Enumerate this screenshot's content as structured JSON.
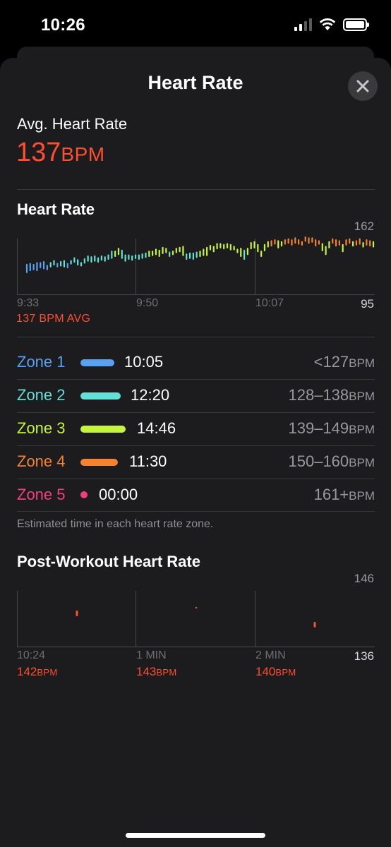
{
  "status_bar": {
    "time": "10:26"
  },
  "sheet": {
    "title": "Heart Rate"
  },
  "summary": {
    "label": "Avg. Heart Rate",
    "value": "137",
    "unit": "BPM"
  },
  "heart_rate_section": {
    "title": "Heart Rate",
    "avg_note": "137 BPM AVG"
  },
  "zones": [
    {
      "name": "Zone 1",
      "time": "10:05",
      "range": "<127",
      "unit": "BPM",
      "color": "#5aa0f0",
      "bar": 0.75
    },
    {
      "name": "Zone 2",
      "time": "12:20",
      "range": "128–138",
      "unit": "BPM",
      "color": "#64e0d6",
      "bar": 0.9
    },
    {
      "name": "Zone 3",
      "time": "14:46",
      "range": "139–149",
      "unit": "BPM",
      "color": "#c6f53d",
      "bar": 1.0
    },
    {
      "name": "Zone 4",
      "time": "11:30",
      "range": "150–160",
      "unit": "BPM",
      "color": "#f5822f",
      "bar": 0.77
    },
    {
      "name": "Zone 5",
      "time": "00:00",
      "range": "161+",
      "unit": "BPM",
      "color": "#f0407a",
      "bar": 0
    }
  ],
  "zones_footnote": "Estimated time in each heart rate zone.",
  "post_workout": {
    "title": "Post-Workout Heart Rate",
    "readings": [
      {
        "label": "10:24",
        "value": "142",
        "unit": "BPM"
      },
      {
        "label": "1 MIN",
        "value": "143",
        "unit": "BPM"
      },
      {
        "label": "2 MIN",
        "value": "140",
        "unit": "BPM"
      }
    ]
  },
  "chart_data": [
    {
      "type": "bar",
      "title": "Heart Rate",
      "x_ticks": [
        "9:33",
        "9:50",
        "10:07"
      ],
      "ylim": [
        95,
        162
      ],
      "y_tick_labels": [
        "162",
        "95"
      ],
      "avg_line_label": "137 BPM AVG",
      "note": "per-interval min/max heart rate ranges, colored by zone",
      "ranges": [
        [
          119,
          127
        ],
        [
          121,
          128
        ],
        [
          122,
          127
        ],
        [
          121,
          129
        ],
        [
          124,
          129
        ],
        [
          123,
          130
        ],
        [
          122,
          126
        ],
        [
          125,
          129
        ],
        [
          127,
          131
        ],
        [
          125,
          128
        ],
        [
          126,
          130
        ],
        [
          125,
          131
        ],
        [
          124,
          128
        ],
        [
          128,
          131
        ],
        [
          130,
          134
        ],
        [
          127,
          132
        ],
        [
          126,
          129
        ],
        [
          129,
          133
        ],
        [
          131,
          136
        ],
        [
          130,
          135
        ],
        [
          131,
          136
        ],
        [
          130,
          134
        ],
        [
          132,
          136
        ],
        [
          131,
          135
        ],
        [
          133,
          137
        ],
        [
          134,
          141
        ],
        [
          136,
          141
        ],
        [
          138,
          144
        ],
        [
          134,
          142
        ],
        [
          131,
          137
        ],
        [
          133,
          137
        ],
        [
          132,
          136
        ],
        [
          134,
          137
        ],
        [
          133,
          137
        ],
        [
          134,
          138
        ],
        [
          135,
          139
        ],
        [
          136,
          141
        ],
        [
          137,
          141
        ],
        [
          138,
          143
        ],
        [
          136,
          142
        ],
        [
          139,
          145
        ],
        [
          140,
          144
        ],
        [
          136,
          140
        ],
        [
          138,
          141
        ],
        [
          140,
          144
        ],
        [
          141,
          145
        ],
        [
          137,
          146
        ],
        [
          133,
          138
        ],
        [
          134,
          139
        ],
        [
          133,
          139
        ],
        [
          135,
          140
        ],
        [
          136,
          141
        ],
        [
          137,
          143
        ],
        [
          137,
          145
        ],
        [
          143,
          147
        ],
        [
          141,
          146
        ],
        [
          144,
          149
        ],
        [
          145,
          149
        ],
        [
          144,
          148
        ],
        [
          145,
          149
        ],
        [
          143,
          148
        ],
        [
          143,
          146
        ],
        [
          140,
          143
        ],
        [
          136,
          144
        ],
        [
          133,
          142
        ],
        [
          138,
          144
        ],
        [
          144,
          150
        ],
        [
          145,
          151
        ],
        [
          141,
          148
        ],
        [
          136,
          141
        ],
        [
          142,
          148
        ],
        [
          146,
          151
        ],
        [
          147,
          152
        ],
        [
          149,
          153
        ],
        [
          145,
          152
        ],
        [
          147,
          151
        ],
        [
          149,
          153
        ],
        [
          150,
          154
        ],
        [
          148,
          153
        ],
        [
          150,
          155
        ],
        [
          149,
          153
        ],
        [
          148,
          151
        ],
        [
          152,
          156
        ],
        [
          150,
          155
        ],
        [
          151,
          155
        ],
        [
          147,
          153
        ],
        [
          149,
          152
        ],
        [
          142,
          149
        ],
        [
          138,
          146
        ],
        [
          145,
          151
        ],
        [
          150,
          154
        ],
        [
          147,
          153
        ],
        [
          148,
          152
        ],
        [
          141,
          148
        ],
        [
          148,
          153
        ],
        [
          150,
          154
        ],
        [
          147,
          151
        ],
        [
          148,
          152
        ],
        [
          149,
          154
        ],
        [
          146,
          150
        ],
        [
          148,
          153
        ],
        [
          147,
          152
        ],
        [
          146,
          151
        ]
      ]
    },
    {
      "type": "bar",
      "title": "Post-Workout Heart Rate",
      "categories": [
        "10:24",
        "1 MIN",
        "2 MIN"
      ],
      "values": [
        142,
        143,
        140
      ],
      "ylim": [
        136,
        146
      ],
      "y_tick_labels": [
        "146",
        "136"
      ]
    }
  ]
}
